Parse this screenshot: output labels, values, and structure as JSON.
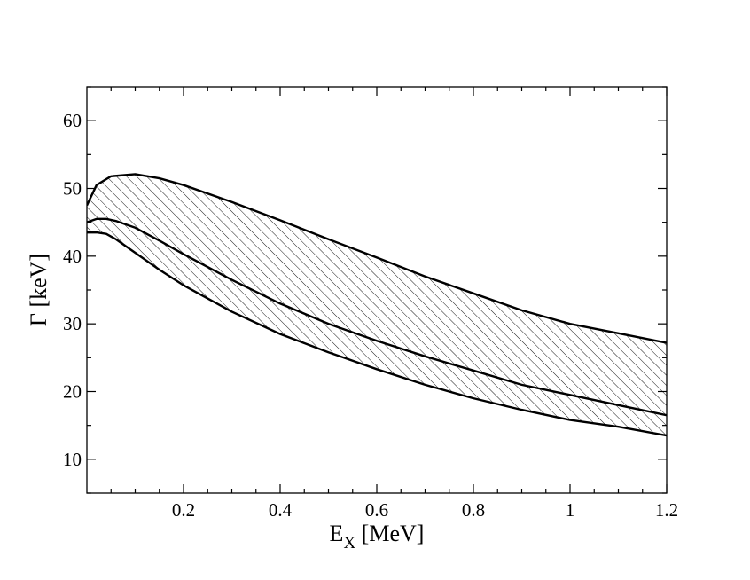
{
  "chart_data": {
    "type": "area",
    "title": "",
    "xlabel": "E",
    "xlabel_sub": "X",
    "xlabel_unit": " [MeV]",
    "ylabel": "Γ [keV]",
    "xlim": [
      0,
      1.2
    ],
    "ylim": [
      5,
      65
    ],
    "x_ticks": [
      0.2,
      0.4,
      0.6,
      0.8,
      1.0,
      1.2
    ],
    "x_tick_labels": [
      "0.2",
      "0.4",
      "0.6",
      "0.8",
      "1",
      "1.2"
    ],
    "y_ticks": [
      10,
      20,
      30,
      40,
      50,
      60
    ],
    "y_tick_labels": [
      "10",
      "20",
      "30",
      "40",
      "50",
      "60"
    ],
    "grid": false,
    "band_fill": "diagonal hatch",
    "series": [
      {
        "x": [
          0.0,
          0.02,
          0.05,
          0.1,
          0.15,
          0.2,
          0.3,
          0.4,
          0.5,
          0.6,
          0.7,
          0.8,
          0.9,
          1.0,
          1.1,
          1.2
        ],
        "values": [
          47.5,
          50.5,
          51.8,
          52.1,
          51.5,
          50.5,
          48.0,
          45.3,
          42.5,
          39.8,
          37.0,
          34.5,
          32.0,
          30.0,
          28.6,
          27.2
        ]
      },
      {
        "x": [
          0.0,
          0.02,
          0.04,
          0.06,
          0.1,
          0.15,
          0.2,
          0.3,
          0.4,
          0.5,
          0.6,
          0.7,
          0.8,
          0.9,
          1.0,
          1.1,
          1.2
        ],
        "values": [
          45.0,
          45.5,
          45.5,
          45.2,
          44.2,
          42.3,
          40.3,
          36.5,
          33.0,
          30.0,
          27.5,
          25.2,
          23.1,
          21.0,
          19.5,
          18.0,
          16.5
        ]
      },
      {
        "x": [
          0.0,
          0.02,
          0.04,
          0.06,
          0.1,
          0.15,
          0.2,
          0.3,
          0.4,
          0.5,
          0.6,
          0.7,
          0.8,
          0.9,
          1.0,
          1.1,
          1.2
        ],
        "values": [
          43.5,
          43.5,
          43.3,
          42.5,
          40.5,
          38.0,
          35.7,
          31.8,
          28.5,
          25.8,
          23.3,
          21.0,
          19.0,
          17.3,
          15.8,
          14.8,
          13.5
        ]
      }
    ]
  }
}
